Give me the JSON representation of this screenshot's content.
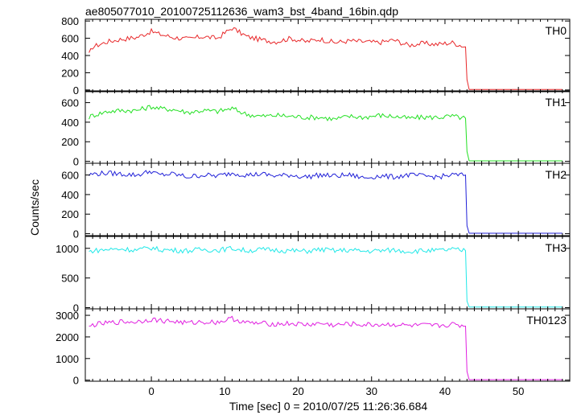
{
  "title": "ae805077010_20100725112636_wam3_bst_4band_16bin.qdp",
  "chart_data": {
    "type": "line",
    "title": "ae805077010_20100725112636_wam3_bst_4band_16bin.qdp",
    "xlabel": "Time [sec] 0 = 2010/07/25 11:26:36.684",
    "ylabel": "Counts/sec",
    "xlim": [
      -9,
      57
    ],
    "x_ticks": [
      0,
      10,
      20,
      30,
      40,
      50
    ],
    "grid": false,
    "legend": "none",
    "series": [
      {
        "name": "TH0",
        "color": "#e8282a",
        "ylim": [
          -20,
          820
        ],
        "y_ticks": [
          0,
          200,
          400,
          600,
          800
        ],
        "x": [
          -8.5,
          -8,
          -6,
          -4,
          -2,
          0,
          1,
          3,
          5,
          7,
          9,
          11,
          13,
          15,
          17,
          19,
          21,
          23,
          25,
          27,
          29,
          31,
          33,
          35,
          37,
          39,
          41,
          42.8,
          43.0,
          43.3,
          56
        ],
        "values": [
          410,
          500,
          560,
          590,
          610,
          680,
          650,
          610,
          590,
          620,
          600,
          720,
          620,
          580,
          560,
          600,
          560,
          590,
          550,
          570,
          560,
          550,
          580,
          520,
          540,
          530,
          550,
          500,
          120,
          5,
          5
        ]
      },
      {
        "name": "TH1",
        "color": "#22e022",
        "ylim": [
          -20,
          720
        ],
        "y_ticks": [
          0,
          200,
          400,
          600
        ],
        "x": [
          -8.5,
          -8,
          -6,
          -4,
          -2,
          0,
          1,
          3,
          5,
          7,
          9,
          11,
          13,
          15,
          17,
          19,
          21,
          23,
          25,
          27,
          29,
          31,
          33,
          35,
          37,
          39,
          41,
          42.8,
          43.0,
          43.3,
          56
        ],
        "values": [
          450,
          470,
          510,
          520,
          520,
          560,
          540,
          530,
          500,
          520,
          510,
          540,
          480,
          460,
          470,
          460,
          450,
          450,
          430,
          460,
          450,
          470,
          460,
          440,
          450,
          450,
          460,
          440,
          100,
          5,
          5
        ]
      },
      {
        "name": "TH2",
        "color": "#2020d8",
        "ylim": [
          -20,
          720
        ],
        "y_ticks": [
          0,
          200,
          400,
          600
        ],
        "x": [
          -8.5,
          -8,
          -6,
          -4,
          -2,
          0,
          1,
          3,
          5,
          7,
          9,
          11,
          13,
          15,
          17,
          19,
          21,
          23,
          25,
          27,
          29,
          31,
          33,
          35,
          37,
          39,
          41,
          42.8,
          43.0,
          43.3,
          56
        ],
        "values": [
          600,
          610,
          620,
          610,
          600,
          640,
          600,
          610,
          580,
          600,
          590,
          620,
          600,
          610,
          590,
          600,
          580,
          600,
          590,
          600,
          570,
          590,
          580,
          600,
          590,
          580,
          600,
          600,
          80,
          5,
          5
        ]
      },
      {
        "name": "TH3",
        "color": "#20e8e8",
        "ylim": [
          -20,
          1200
        ],
        "y_ticks": [
          0,
          500,
          1000
        ],
        "x": [
          -8.5,
          -8,
          -6,
          -4,
          -2,
          0,
          1,
          3,
          5,
          7,
          9,
          11,
          13,
          15,
          17,
          19,
          21,
          23,
          25,
          27,
          29,
          31,
          33,
          35,
          37,
          39,
          41,
          42.8,
          43.0,
          43.3,
          56
        ],
        "values": [
          940,
          960,
          980,
          990,
          970,
          1010,
          980,
          970,
          960,
          980,
          970,
          1000,
          960,
          980,
          970,
          960,
          950,
          980,
          960,
          970,
          950,
          960,
          970,
          950,
          960,
          960,
          980,
          960,
          110,
          10,
          10
        ]
      },
      {
        "name": "TH0123",
        "color": "#e020e0",
        "ylim": [
          -50,
          3300
        ],
        "y_ticks": [
          0,
          1000,
          2000,
          3000
        ],
        "x": [
          -8.5,
          -8,
          -6,
          -4,
          -2,
          0,
          1,
          3,
          5,
          7,
          9,
          11,
          13,
          15,
          17,
          19,
          21,
          23,
          25,
          27,
          29,
          31,
          33,
          35,
          37,
          39,
          41,
          42.8,
          43.0,
          43.3,
          56
        ],
        "values": [
          2420,
          2560,
          2640,
          2700,
          2700,
          2820,
          2760,
          2720,
          2640,
          2700,
          2680,
          2850,
          2650,
          2620,
          2600,
          2620,
          2560,
          2620,
          2540,
          2600,
          2560,
          2570,
          2580,
          2520,
          2530,
          2510,
          2580,
          2500,
          400,
          20,
          20
        ]
      }
    ]
  }
}
